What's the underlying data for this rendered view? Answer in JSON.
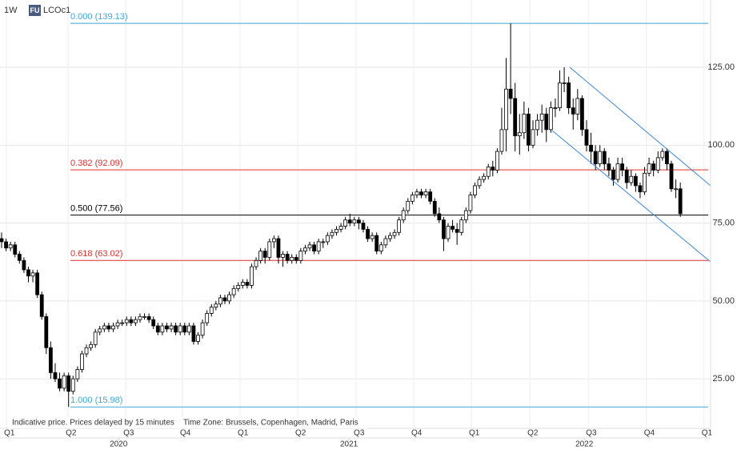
{
  "chart_data": {
    "type": "candlestick",
    "interval": "1W",
    "badge": "FU",
    "symbol": "LCOc1",
    "note": "Indicative price. Prices delayed by 15 minutes",
    "timezone": "Time Zone: Brussels, Copenhagen, Madrid, Paris",
    "up_color": "#ffffff",
    "down_color": "#000000",
    "ylim": [
      9.1,
      146.6
    ],
    "yticks": [
      {
        "value": 25,
        "label": "25.00"
      },
      {
        "value": 50,
        "label": "50.00"
      },
      {
        "value": 75,
        "label": "75.00"
      },
      {
        "value": 100,
        "label": "100.00"
      },
      {
        "value": 125,
        "label": "125.00"
      }
    ],
    "xticks": [
      {
        "value": 1.1,
        "label": "Q1"
      },
      {
        "value": 14.9,
        "label": "Q2"
      },
      {
        "value": 27.8,
        "label": "Q3"
      },
      {
        "value": 40.5,
        "label": "Q4"
      },
      {
        "value": 53.4,
        "label": "Q1"
      },
      {
        "value": 66.3,
        "label": "Q2"
      },
      {
        "value": 79.4,
        "label": "Q3"
      },
      {
        "value": 92.3,
        "label": "Q4"
      },
      {
        "value": 105.2,
        "label": "Q1"
      },
      {
        "value": 118.3,
        "label": "Q2"
      },
      {
        "value": 131.4,
        "label": "Q3"
      },
      {
        "value": 144.4,
        "label": "Q4"
      },
      {
        "value": 157.3,
        "label": "Q1"
      }
    ],
    "year_ticks": [
      {
        "value": 26.2,
        "label": "2020"
      },
      {
        "value": 77.8,
        "label": "2021"
      },
      {
        "value": 130.5,
        "label": "2022"
      }
    ],
    "levels": [
      {
        "label": "0.000 (139.13)",
        "value": 139.13,
        "color": "#3fa9d6"
      },
      {
        "label": "0.382 (92.09)",
        "value": 92.09,
        "color": "#e03030"
      },
      {
        "label": "0.500 (77.56)",
        "value": 77.56,
        "color": "#000000"
      },
      {
        "label": "0.618 (63.02)",
        "value": 63.02,
        "color": "#e03030"
      },
      {
        "label": "1.000 (15.98)",
        "value": 15.98,
        "color": "#3fa9d6"
      }
    ],
    "candles": [
      [
        70,
        72,
        67,
        69
      ],
      [
        69,
        70,
        66,
        67
      ],
      [
        67,
        69,
        66,
        68
      ],
      [
        68,
        69,
        64,
        65
      ],
      [
        65,
        66,
        62,
        63
      ],
      [
        63,
        64,
        59,
        60
      ],
      [
        60,
        61,
        56,
        58
      ],
      [
        58,
        60,
        56,
        59
      ],
      [
        59,
        60,
        51,
        52
      ],
      [
        52,
        53,
        44,
        45
      ],
      [
        45,
        46,
        33,
        35
      ],
      [
        35,
        37,
        25,
        27
      ],
      [
        27,
        30,
        24,
        25
      ],
      [
        25,
        27,
        21,
        22
      ],
      [
        22,
        27,
        21,
        26
      ],
      [
        26,
        27,
        16,
        21
      ],
      [
        21,
        26,
        20,
        25
      ],
      [
        25,
        29,
        24,
        28
      ],
      [
        28,
        34,
        27,
        33
      ],
      [
        33,
        36,
        32,
        35
      ],
      [
        35,
        37,
        34,
        36
      ],
      [
        36,
        41,
        35,
        40
      ],
      [
        40,
        42,
        39,
        41
      ],
      [
        41,
        43,
        40,
        42
      ],
      [
        42,
        43,
        40,
        41
      ],
      [
        41,
        43,
        40,
        42
      ],
      [
        42,
        44,
        41,
        43
      ],
      [
        43,
        44,
        42,
        43
      ],
      [
        43,
        45,
        42,
        44
      ],
      [
        44,
        45,
        42,
        43
      ],
      [
        43,
        45,
        42,
        44
      ],
      [
        44,
        46,
        43,
        45
      ],
      [
        45,
        46,
        44,
        45
      ],
      [
        45,
        46,
        43,
        44
      ],
      [
        44,
        45,
        41,
        42
      ],
      [
        42,
        43,
        39,
        40
      ],
      [
        40,
        43,
        39,
        42
      ],
      [
        42,
        43,
        40,
        41
      ],
      [
        41,
        43,
        40,
        42
      ],
      [
        42,
        43,
        39,
        40
      ],
      [
        40,
        43,
        39,
        42
      ],
      [
        42,
        43,
        39,
        40
      ],
      [
        40,
        43,
        39,
        42
      ],
      [
        42,
        43,
        36,
        37
      ],
      [
        37,
        40,
        36,
        39
      ],
      [
        39,
        44,
        38,
        43
      ],
      [
        43,
        47,
        42,
        46
      ],
      [
        46,
        49,
        45,
        48
      ],
      [
        48,
        50,
        47,
        49
      ],
      [
        49,
        52,
        48,
        51
      ],
      [
        51,
        52,
        49,
        50
      ],
      [
        50,
        53,
        49,
        52
      ],
      [
        52,
        55,
        51,
        54
      ],
      [
        54,
        56,
        53,
        55
      ],
      [
        55,
        57,
        54,
        56
      ],
      [
        56,
        57,
        54,
        55
      ],
      [
        55,
        62,
        54,
        61
      ],
      [
        61,
        64,
        60,
        63
      ],
      [
        63,
        67,
        62,
        66
      ],
      [
        66,
        67,
        62,
        64
      ],
      [
        64,
        70,
        63,
        69
      ],
      [
        69,
        71,
        67,
        70
      ],
      [
        70,
        71,
        62,
        64
      ],
      [
        64,
        66,
        61,
        65
      ],
      [
        65,
        66,
        62,
        63
      ],
      [
        63,
        65,
        62,
        64
      ],
      [
        64,
        65,
        62,
        63
      ],
      [
        63,
        67,
        62,
        66
      ],
      [
        66,
        68,
        65,
        67
      ],
      [
        67,
        69,
        66,
        68
      ],
      [
        68,
        69,
        65,
        66
      ],
      [
        66,
        70,
        65,
        69
      ],
      [
        69,
        70,
        67,
        69
      ],
      [
        69,
        72,
        68,
        71
      ],
      [
        71,
        73,
        70,
        72
      ],
      [
        72,
        74,
        71,
        73
      ],
      [
        73,
        75,
        72,
        74
      ],
      [
        74,
        77,
        73,
        76
      ],
      [
        76,
        78,
        74,
        75
      ],
      [
        75,
        77,
        74,
        76
      ],
      [
        76,
        77,
        73,
        75
      ],
      [
        75,
        76,
        72,
        73
      ],
      [
        73,
        74,
        69,
        70
      ],
      [
        70,
        72,
        69,
        71
      ],
      [
        71,
        72,
        65,
        66
      ],
      [
        66,
        69,
        65,
        68
      ],
      [
        68,
        71,
        67,
        70
      ],
      [
        70,
        72,
        69,
        71
      ],
      [
        71,
        73,
        70,
        72
      ],
      [
        72,
        77,
        71,
        76
      ],
      [
        76,
        80,
        75,
        79
      ],
      [
        79,
        83,
        78,
        82
      ],
      [
        82,
        85,
        81,
        84
      ],
      [
        84,
        86,
        83,
        85
      ],
      [
        85,
        86,
        83,
        84
      ],
      [
        84,
        86,
        83,
        85
      ],
      [
        85,
        86,
        81,
        82
      ],
      [
        82,
        83,
        77,
        78
      ],
      [
        78,
        80,
        75,
        76
      ],
      [
        76,
        77,
        66,
        70
      ],
      [
        70,
        75,
        69,
        74
      ],
      [
        74,
        76,
        72,
        73
      ],
      [
        73,
        75,
        68,
        72
      ],
      [
        72,
        77,
        71,
        76
      ],
      [
        76,
        80,
        75,
        79
      ],
      [
        79,
        85,
        78,
        84
      ],
      [
        84,
        88,
        83,
        87
      ],
      [
        87,
        90,
        86,
        89
      ],
      [
        89,
        91,
        88,
        90
      ],
      [
        90,
        94,
        89,
        93
      ],
      [
        93,
        95,
        90,
        92
      ],
      [
        92,
        99,
        91,
        98
      ],
      [
        98,
        112,
        97,
        105
      ],
      [
        105,
        128,
        98,
        118
      ],
      [
        118,
        139.13,
        110,
        115
      ],
      [
        115,
        120,
        98,
        103
      ],
      [
        103,
        110,
        97,
        104
      ],
      [
        104,
        114,
        102,
        110
      ],
      [
        110,
        112,
        98,
        100
      ],
      [
        100,
        108,
        99,
        105
      ],
      [
        105,
        110,
        103,
        108
      ],
      [
        108,
        113,
        104,
        110
      ],
      [
        110,
        112,
        101,
        105
      ],
      [
        105,
        114,
        104,
        112
      ],
      [
        112,
        115,
        109,
        112
      ],
      [
        112,
        124,
        111,
        120
      ],
      [
        120,
        125,
        117,
        120
      ],
      [
        120,
        122,
        110,
        112
      ],
      [
        112,
        115,
        105,
        110
      ],
      [
        110,
        118,
        108,
        115
      ],
      [
        115,
        116,
        103,
        105
      ],
      [
        105,
        108,
        98,
        100
      ],
      [
        100,
        104,
        94,
        98
      ],
      [
        98,
        100,
        92,
        94
      ],
      [
        94,
        100,
        93,
        98
      ],
      [
        98,
        99,
        92,
        94
      ],
      [
        94,
        96,
        90,
        92
      ],
      [
        92,
        93,
        87,
        89
      ],
      [
        89,
        96,
        88,
        94
      ],
      [
        94,
        96,
        90,
        92
      ],
      [
        92,
        93,
        86,
        88
      ],
      [
        88,
        92,
        87,
        90
      ],
      [
        90,
        91,
        85,
        87
      ],
      [
        87,
        88,
        83,
        85
      ],
      [
        85,
        93,
        84,
        91
      ],
      [
        91,
        96,
        90,
        94
      ],
      [
        94,
        95,
        90,
        92
      ],
      [
        92,
        98,
        91,
        96
      ],
      [
        96,
        99,
        95,
        98
      ],
      [
        98,
        99,
        92,
        94
      ],
      [
        94,
        95,
        85,
        86
      ],
      [
        86,
        89,
        83,
        86
      ],
      [
        86,
        88,
        77,
        78
      ]
    ]
  }
}
